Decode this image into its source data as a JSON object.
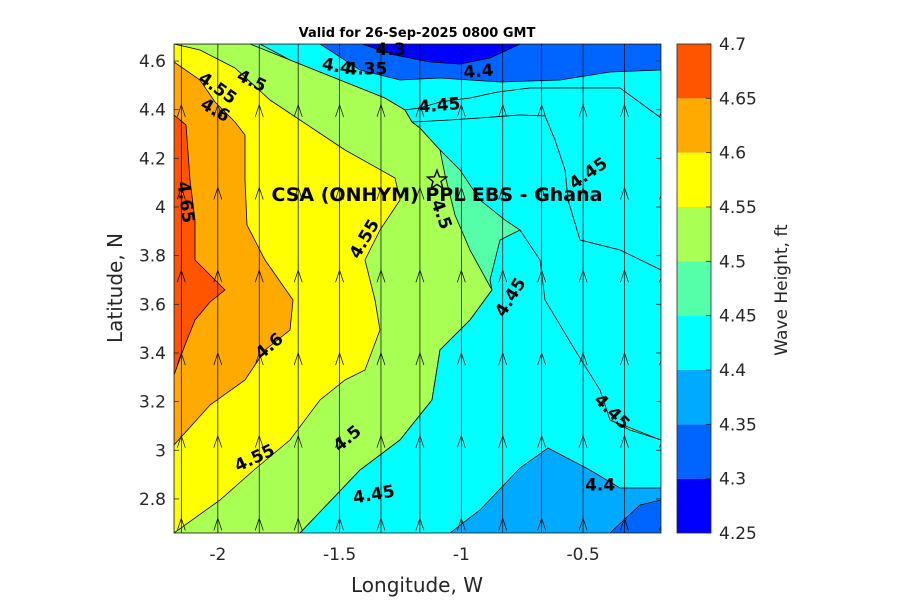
{
  "chart_data": {
    "type": "contour",
    "title": "Valid for 26-Sep-2025 0800 GMT",
    "xlabel": "Longitude, W",
    "ylabel": "Latitude, N",
    "colorbar_label": "Wave Height, ft",
    "xlim": [
      -2.18,
      -0.18
    ],
    "ylim": [
      2.66,
      4.67
    ],
    "x_ticks": [
      -2,
      -1.5,
      -1,
      -0.5
    ],
    "x_tick_labels": [
      "-2",
      "-1.5",
      "-1",
      "-0.5"
    ],
    "y_ticks": [
      2.8,
      3.0,
      3.2,
      3.4,
      3.6,
      3.8,
      4.0,
      4.2,
      4.4,
      4.6
    ],
    "y_tick_labels": [
      "2.8",
      "3",
      "3.2",
      "3.4",
      "3.6",
      "3.8",
      "4",
      "4.2",
      "4.4",
      "4.6"
    ],
    "colorbar": {
      "levels": [
        4.25,
        4.3,
        4.35,
        4.4,
        4.45,
        4.5,
        4.55,
        4.6,
        4.65,
        4.7
      ],
      "tick_labels": [
        "4.25",
        "4.3",
        "4.35",
        "4.4",
        "4.45",
        "4.5",
        "4.55",
        "4.6",
        "4.65",
        "4.7"
      ],
      "colors": [
        "#0000ff",
        "#0064ff",
        "#00aaff",
        "#00ffff",
        "#55ffaa",
        "#aaff55",
        "#ffff00",
        "#ffaa00",
        "#ff5500"
      ]
    },
    "contour_labels": [
      {
        "text": "4.3",
        "lon": -1.29,
        "lat": 4.65,
        "angle": 0
      },
      {
        "text": "4.35",
        "lon": -1.39,
        "lat": 4.57,
        "angle": 0
      },
      {
        "text": "4.4",
        "lon": -1.51,
        "lat": 4.58,
        "angle": 10
      },
      {
        "text": "4.4",
        "lon": -0.93,
        "lat": 4.56,
        "angle": -5
      },
      {
        "text": "4.5",
        "lon": -1.86,
        "lat": 4.52,
        "angle": 25
      },
      {
        "text": "4.55",
        "lon": -2.0,
        "lat": 4.49,
        "angle": 35
      },
      {
        "text": "4.6",
        "lon": -2.01,
        "lat": 4.4,
        "angle": 30
      },
      {
        "text": "4.45",
        "lon": -1.09,
        "lat": 4.42,
        "angle": -5
      },
      {
        "text": "4.45",
        "lon": -0.48,
        "lat": 4.14,
        "angle": -35
      },
      {
        "text": "4.65",
        "lon": -2.13,
        "lat": 4.02,
        "angle": 82
      },
      {
        "text": "4.5",
        "lon": -1.08,
        "lat": 3.97,
        "angle": 70
      },
      {
        "text": "4.55",
        "lon": -1.4,
        "lat": 3.87,
        "angle": -60
      },
      {
        "text": "4.45",
        "lon": -0.8,
        "lat": 3.63,
        "angle": -58
      },
      {
        "text": "4.6",
        "lon": -1.79,
        "lat": 3.43,
        "angle": -40
      },
      {
        "text": "4.45",
        "lon": -0.38,
        "lat": 3.16,
        "angle": 45
      },
      {
        "text": "4.5",
        "lon": -1.47,
        "lat": 3.05,
        "angle": -40
      },
      {
        "text": "4.55",
        "lon": -1.85,
        "lat": 2.97,
        "angle": -25
      },
      {
        "text": "4.45",
        "lon": -1.36,
        "lat": 2.82,
        "angle": -10
      },
      {
        "text": "4.4",
        "lon": -0.43,
        "lat": 2.86,
        "angle": 0
      }
    ],
    "site": {
      "name": "CSA (ONHYM) PPL EBS  - Ghana",
      "lon": -1.1,
      "lat": 4.11,
      "marker": "star-icon"
    },
    "vector_columns_lon": [
      -2.15,
      -2.0,
      -1.83,
      -1.67,
      -1.5,
      -1.33,
      -1.17,
      -1.0,
      -0.83,
      -0.67,
      -0.5,
      -0.33,
      -0.17
    ],
    "vector_rows_lat": [
      2.72,
      3.06,
      3.4,
      3.74,
      4.08,
      4.42
    ],
    "vector_direction": "north"
  }
}
